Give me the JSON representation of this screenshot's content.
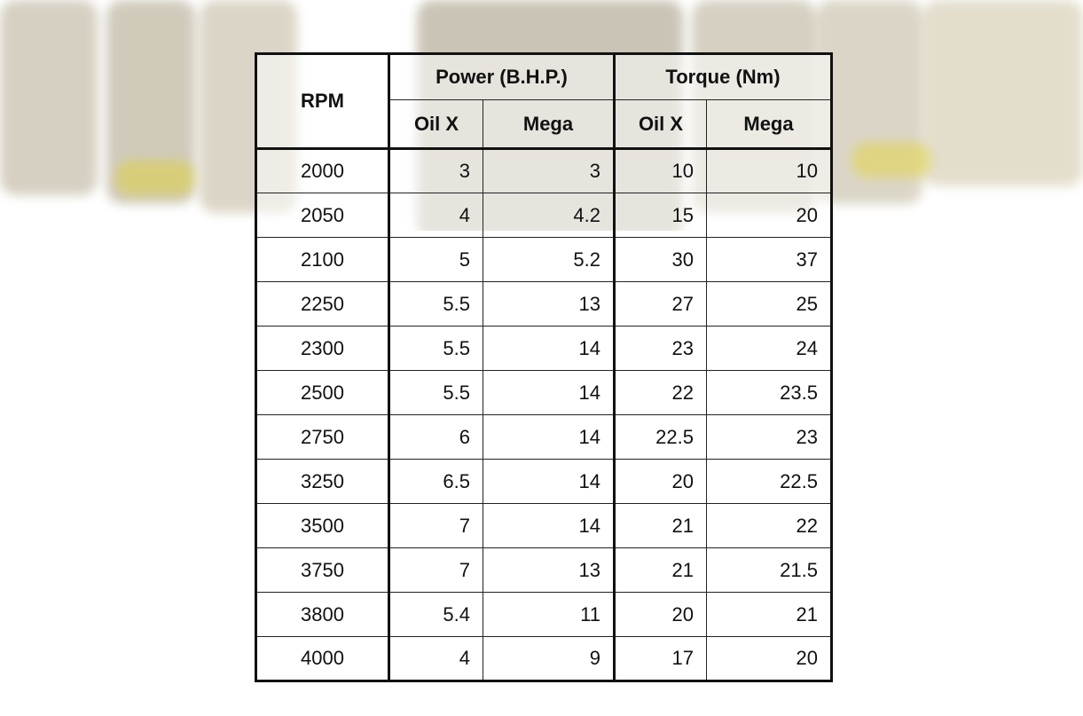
{
  "table": {
    "header": {
      "rpm": "RPM",
      "groups": [
        "Power (B.H.P.)",
        "Torque (Nm)"
      ],
      "subcolumns": [
        "Oil X",
        "Mega",
        "Oil X",
        "Mega"
      ]
    },
    "rows": [
      [
        2000,
        3,
        3,
        10,
        10
      ],
      [
        2050,
        4,
        4.2,
        15,
        20
      ],
      [
        2100,
        5,
        5.2,
        30,
        37
      ],
      [
        2250,
        5.5,
        13,
        27,
        25
      ],
      [
        2300,
        5.5,
        14,
        23,
        24
      ],
      [
        2500,
        5.5,
        14,
        22,
        23.5
      ],
      [
        2750,
        6,
        14,
        22.5,
        23
      ],
      [
        3250,
        6.5,
        14,
        20,
        22.5
      ],
      [
        3500,
        7,
        14,
        21,
        22
      ],
      [
        3750,
        7,
        13,
        21,
        21.5
      ],
      [
        3800,
        5.4,
        11,
        20,
        21
      ],
      [
        4000,
        4,
        9,
        17,
        20
      ]
    ]
  }
}
